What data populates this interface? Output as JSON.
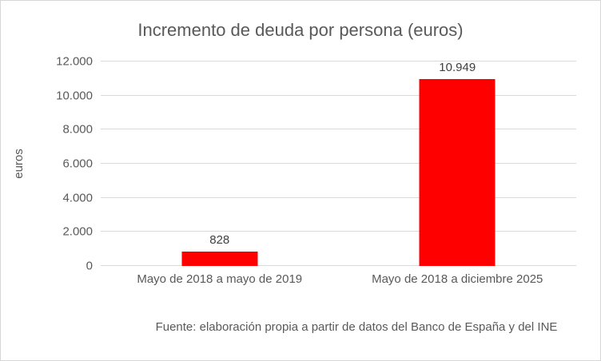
{
  "chart_data": {
    "type": "bar",
    "title": "Incremento de deuda por persona (euros)",
    "ylabel": "euros",
    "xlabel": "",
    "categories": [
      "Mayo de 2018 a mayo de 2019",
      "Mayo de 2018 a diciembre 2025"
    ],
    "values": [
      828,
      10949
    ],
    "value_labels": [
      "828",
      "10.949"
    ],
    "ylim": [
      0,
      12000
    ],
    "ytick_values": [
      0,
      2000,
      4000,
      6000,
      8000,
      10000,
      12000
    ],
    "ytick_labels": [
      "0",
      "2.000",
      "4.000",
      "6.000",
      "8.000",
      "10.000",
      "12.000"
    ],
    "grid": true,
    "legend": "none",
    "bar_color": "#ff0000",
    "source": "Fuente: elaboración propia a partir de datos del Banco de España y del INE"
  }
}
